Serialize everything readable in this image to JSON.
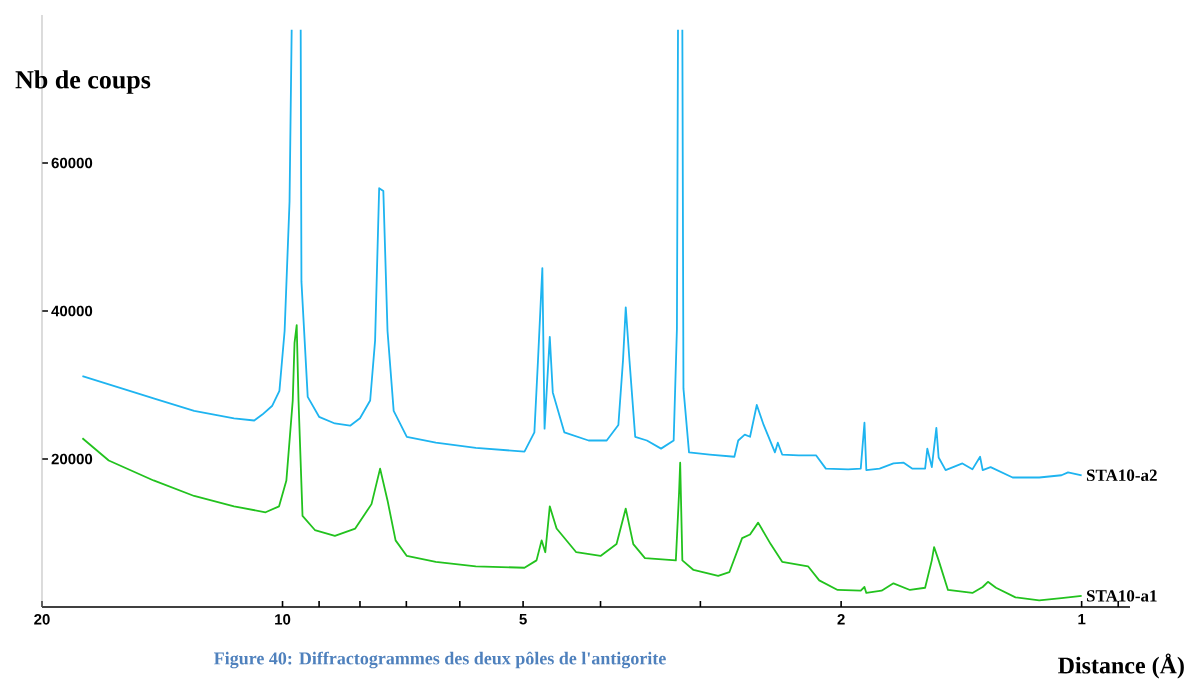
{
  "chart_data": {
    "type": "line",
    "xlabel": "Distance (Å)",
    "ylabel": "Nb de coups",
    "annotations": [
      "Figure 40: Diffractogrammes des deux pôles de l'antigorite"
    ],
    "log": "x",
    "xlim": [
      20,
      0.87
    ],
    "ylim": [
      0,
      80000
    ],
    "xticks": [
      20,
      {
        "value": 9,
        "label": null
      },
      10,
      {
        "value": 8,
        "label": null
      },
      {
        "value": 7,
        "label": null
      },
      {
        "value": 6,
        "label": null
      },
      5,
      {
        "value": 4,
        "label": null
      },
      {
        "value": 3,
        "label": null
      },
      2,
      1,
      {
        "value": 0.9,
        "label": null
      }
    ],
    "yticks": [
      20000,
      40000,
      60000
    ],
    "series": [
      {
        "name": "STA10-a2",
        "color": "#1eb4f0",
        "x": [
          17.8,
          14.7,
          14.5,
          12.9,
          11.5,
          10.85,
          10.6,
          10.3,
          10.09,
          9.94,
          9.8,
          9.74,
          9.6,
          9.49,
          9.47,
          9.3,
          9.0,
          8.6,
          8.23,
          8.0,
          7.77,
          7.66,
          7.57,
          7.48,
          7.39,
          7.26,
          6.99,
          6.43,
          5.73,
          4.98,
          4.84,
          4.79,
          4.73,
          4.7,
          4.63,
          4.59,
          4.44,
          4.14,
          3.93,
          3.8,
          3.75,
          3.72,
          3.68,
          3.62,
          3.5,
          3.36,
          3.24,
          3.21,
          3.2,
          3.18,
          3.16,
          3.15,
          3.1,
          2.92,
          2.72,
          2.69,
          2.64,
          2.6,
          2.55,
          2.5,
          2.42,
          2.4,
          2.37,
          2.26,
          2.15,
          2.09,
          1.96,
          1.89,
          1.87,
          1.86,
          1.79,
          1.72,
          1.67,
          1.63,
          1.57,
          1.56,
          1.54,
          1.52,
          1.51,
          1.48,
          1.41,
          1.37,
          1.34,
          1.33,
          1.3,
          1.22,
          1.13,
          1.06,
          1.04,
          1.0
        ],
        "values": [
          31200,
          28400,
          28200,
          26500,
          25500,
          25200,
          26000,
          27200,
          29200,
          37300,
          54800,
          78000,
          null,
          78000,
          44000,
          28400,
          25700,
          24800,
          24500,
          25500,
          27900,
          36000,
          56600,
          56200,
          37300,
          26500,
          23000,
          22200,
          21500,
          21000,
          23600,
          33300,
          45800,
          24100,
          36500,
          29000,
          23600,
          22500,
          22500,
          24600,
          33300,
          40500,
          33300,
          23000,
          22500,
          21400,
          22500,
          37600,
          78000,
          null,
          78000,
          29500,
          20900,
          20600,
          20300,
          22500,
          23300,
          23000,
          27300,
          24600,
          20900,
          22200,
          20600,
          20500,
          20500,
          18700,
          18600,
          18700,
          24900,
          18500,
          18700,
          19400,
          19500,
          18700,
          18700,
          21400,
          18900,
          24200,
          20200,
          18500,
          19400,
          18600,
          20300,
          18500,
          18900,
          17500,
          17500,
          17800,
          18200,
          17800
        ]
      },
      {
        "name": "STA10-a1",
        "color": "#22c21e",
        "x": [
          17.8,
          16.5,
          14.5,
          12.9,
          11.5,
          10.5,
          10.1,
          9.89,
          9.71,
          9.66,
          9.6,
          9.55,
          9.44,
          9.11,
          8.6,
          8.11,
          7.74,
          7.55,
          7.39,
          7.22,
          6.99,
          6.43,
          5.73,
          4.98,
          4.81,
          4.74,
          4.69,
          4.63,
          4.54,
          4.29,
          4.0,
          3.82,
          3.72,
          3.64,
          3.52,
          3.22,
          3.19,
          3.18,
          3.16,
          3.06,
          2.85,
          2.76,
          2.66,
          2.6,
          2.54,
          2.45,
          2.37,
          2.2,
          2.13,
          2.02,
          1.89,
          1.87,
          1.86,
          1.78,
          1.72,
          1.64,
          1.57,
          1.54,
          1.53,
          1.51,
          1.47,
          1.37,
          1.33,
          1.31,
          1.28,
          1.21,
          1.13,
          1.06,
          1.0
        ],
        "values": [
          22800,
          19800,
          17100,
          15000,
          13600,
          12800,
          13600,
          17100,
          27900,
          35700,
          38100,
          27900,
          12300,
          10400,
          9600,
          10600,
          13900,
          18700,
          14400,
          9000,
          6900,
          6100,
          5500,
          5300,
          6300,
          9000,
          7400,
          13600,
          10600,
          7400,
          6900,
          8500,
          13300,
          8500,
          6600,
          6300,
          15500,
          19500,
          6300,
          5000,
          4200,
          4700,
          9300,
          9800,
          11400,
          8500,
          6100,
          5500,
          3600,
          2300,
          2200,
          2700,
          1900,
          2200,
          3200,
          2300,
          2600,
          6300,
          8100,
          6300,
          2300,
          1900,
          2700,
          3400,
          2600,
          1300,
          900,
          1200,
          1500
        ]
      }
    ]
  }
}
